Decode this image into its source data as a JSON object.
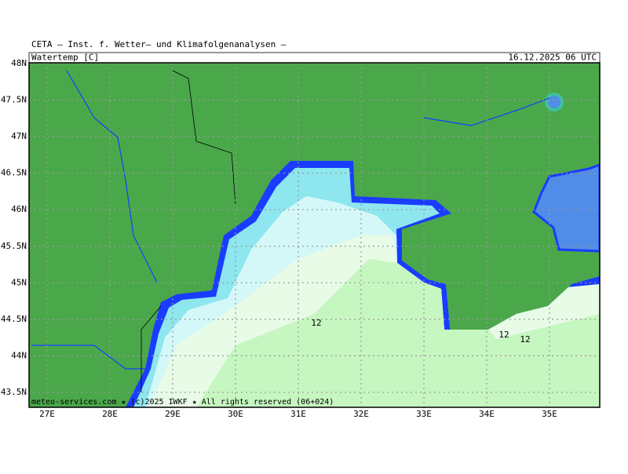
{
  "header": {
    "title": "CETA – Inst. f. Wetter– und Klimafolgenanalysen –",
    "parameter": "Watertemp [C]",
    "valid_time": "16.12.2025 06 UTC"
  },
  "map": {
    "lat_labels": [
      "48N",
      "47.5N",
      "47N",
      "46.5N",
      "46N",
      "45.5N",
      "45N",
      "44.5N",
      "44N",
      "43.5N"
    ],
    "lon_labels": [
      "27E",
      "28E",
      "29E",
      "30E",
      "31E",
      "32E",
      "33E",
      "34E",
      "35E"
    ],
    "contour_labels": [
      "12",
      "12",
      "12"
    ],
    "credit": "meteo-services.com ★ (c)2025 IWKF ★ All rights reserved (06+024)"
  }
}
